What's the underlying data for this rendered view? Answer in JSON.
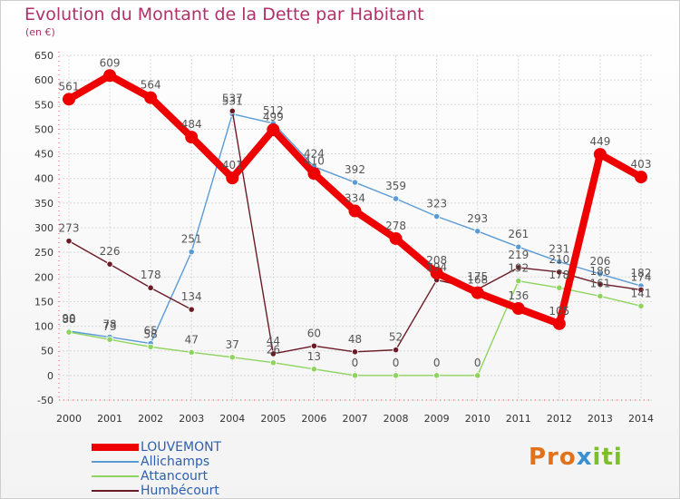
{
  "title": "Evolution du Montant de la Dette par Habitant",
  "subtitle": "(en €)",
  "brand": {
    "text": "Proxiti"
  },
  "chart_data": {
    "type": "line",
    "title": "Evolution du Montant de la Dette par Habitant",
    "subtitle": "(en €)",
    "x": [
      2000,
      2001,
      2002,
      2003,
      2004,
      2005,
      2006,
      2007,
      2008,
      2009,
      2010,
      2011,
      2012,
      2013,
      2014
    ],
    "ylim": [
      -50,
      650
    ],
    "yticks": [
      -50,
      0,
      50,
      100,
      150,
      200,
      250,
      300,
      350,
      400,
      450,
      500,
      550,
      600,
      650
    ],
    "grid": true,
    "legend_position": "bottom-left",
    "series": [
      {
        "name": "LOUVEMONT",
        "color": "#ee0000",
        "values": [
          561,
          609,
          564,
          484,
          401,
          499,
          410,
          334,
          278,
          208,
          168,
          136,
          105,
          449,
          403
        ]
      },
      {
        "name": "Allichamps",
        "color": "#5a9bd5",
        "values": [
          90,
          78,
          65,
          251,
          531,
          512,
          424,
          392,
          359,
          323,
          293,
          261,
          231,
          206,
          182
        ]
      },
      {
        "name": "Attancourt",
        "color": "#8fd460",
        "values": [
          88,
          73,
          58,
          47,
          37,
          26,
          13,
          0,
          0,
          0,
          0,
          192,
          178,
          161,
          141
        ]
      },
      {
        "name": "Humbécourt",
        "color": "#6b1b25",
        "values": [
          273,
          226,
          178,
          134,
          537,
          44,
          60,
          48,
          52,
          194,
          175,
          219,
          210,
          186,
          174
        ]
      }
    ],
    "gaps": {
      "Humbécourt": [
        [
          2003,
          2004
        ]
      ]
    }
  }
}
